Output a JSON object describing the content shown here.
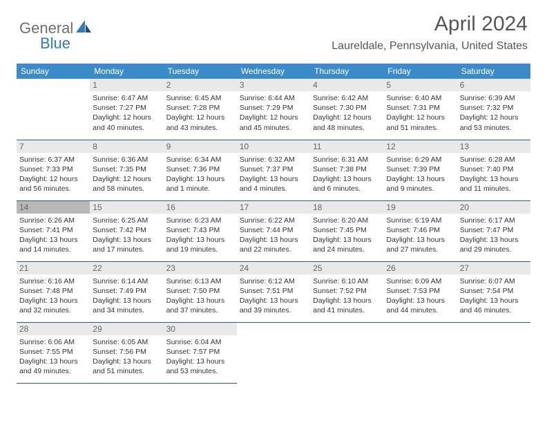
{
  "logo": {
    "part1": "General",
    "part2": "Blue"
  },
  "title": "April 2024",
  "location": "Laureldale, Pennsylvania, United States",
  "colors": {
    "header_bg": "#3b8bc8",
    "header_text": "#ffffff",
    "daynum_bg": "#e9e9e9",
    "daynum_bg_alt": "#b8b8b8",
    "border": "#2b5d84",
    "text": "#333333",
    "logo_gray": "#6f6f6f",
    "logo_blue": "#2f7bbf"
  },
  "day_headers": [
    "Sunday",
    "Monday",
    "Tuesday",
    "Wednesday",
    "Thursday",
    "Friday",
    "Saturday"
  ],
  "weeks": [
    [
      null,
      {
        "n": "1",
        "sr": "Sunrise: 6:47 AM",
        "ss": "Sunset: 7:27 PM",
        "d1": "Daylight: 12 hours",
        "d2": "and 40 minutes."
      },
      {
        "n": "2",
        "sr": "Sunrise: 6:45 AM",
        "ss": "Sunset: 7:28 PM",
        "d1": "Daylight: 12 hours",
        "d2": "and 43 minutes."
      },
      {
        "n": "3",
        "sr": "Sunrise: 6:44 AM",
        "ss": "Sunset: 7:29 PM",
        "d1": "Daylight: 12 hours",
        "d2": "and 45 minutes."
      },
      {
        "n": "4",
        "sr": "Sunrise: 6:42 AM",
        "ss": "Sunset: 7:30 PM",
        "d1": "Daylight: 12 hours",
        "d2": "and 48 minutes."
      },
      {
        "n": "5",
        "sr": "Sunrise: 6:40 AM",
        "ss": "Sunset: 7:31 PM",
        "d1": "Daylight: 12 hours",
        "d2": "and 51 minutes."
      },
      {
        "n": "6",
        "sr": "Sunrise: 6:39 AM",
        "ss": "Sunset: 7:32 PM",
        "d1": "Daylight: 12 hours",
        "d2": "and 53 minutes."
      }
    ],
    [
      {
        "n": "7",
        "sr": "Sunrise: 6:37 AM",
        "ss": "Sunset: 7:33 PM",
        "d1": "Daylight: 12 hours",
        "d2": "and 56 minutes."
      },
      {
        "n": "8",
        "sr": "Sunrise: 6:36 AM",
        "ss": "Sunset: 7:35 PM",
        "d1": "Daylight: 12 hours",
        "d2": "and 58 minutes."
      },
      {
        "n": "9",
        "sr": "Sunrise: 6:34 AM",
        "ss": "Sunset: 7:36 PM",
        "d1": "Daylight: 13 hours",
        "d2": "and 1 minute."
      },
      {
        "n": "10",
        "sr": "Sunrise: 6:32 AM",
        "ss": "Sunset: 7:37 PM",
        "d1": "Daylight: 13 hours",
        "d2": "and 4 minutes."
      },
      {
        "n": "11",
        "sr": "Sunrise: 6:31 AM",
        "ss": "Sunset: 7:38 PM",
        "d1": "Daylight: 13 hours",
        "d2": "and 6 minutes."
      },
      {
        "n": "12",
        "sr": "Sunrise: 6:29 AM",
        "ss": "Sunset: 7:39 PM",
        "d1": "Daylight: 13 hours",
        "d2": "and 9 minutes."
      },
      {
        "n": "13",
        "sr": "Sunrise: 6:28 AM",
        "ss": "Sunset: 7:40 PM",
        "d1": "Daylight: 13 hours",
        "d2": "and 11 minutes."
      }
    ],
    [
      {
        "n": "14",
        "dark": true,
        "sr": "Sunrise: 6:26 AM",
        "ss": "Sunset: 7:41 PM",
        "d1": "Daylight: 13 hours",
        "d2": "and 14 minutes."
      },
      {
        "n": "15",
        "sr": "Sunrise: 6:25 AM",
        "ss": "Sunset: 7:42 PM",
        "d1": "Daylight: 13 hours",
        "d2": "and 17 minutes."
      },
      {
        "n": "16",
        "sr": "Sunrise: 6:23 AM",
        "ss": "Sunset: 7:43 PM",
        "d1": "Daylight: 13 hours",
        "d2": "and 19 minutes."
      },
      {
        "n": "17",
        "sr": "Sunrise: 6:22 AM",
        "ss": "Sunset: 7:44 PM",
        "d1": "Daylight: 13 hours",
        "d2": "and 22 minutes."
      },
      {
        "n": "18",
        "sr": "Sunrise: 6:20 AM",
        "ss": "Sunset: 7:45 PM",
        "d1": "Daylight: 13 hours",
        "d2": "and 24 minutes."
      },
      {
        "n": "19",
        "sr": "Sunrise: 6:19 AM",
        "ss": "Sunset: 7:46 PM",
        "d1": "Daylight: 13 hours",
        "d2": "and 27 minutes."
      },
      {
        "n": "20",
        "sr": "Sunrise: 6:17 AM",
        "ss": "Sunset: 7:47 PM",
        "d1": "Daylight: 13 hours",
        "d2": "and 29 minutes."
      }
    ],
    [
      {
        "n": "21",
        "sr": "Sunrise: 6:16 AM",
        "ss": "Sunset: 7:48 PM",
        "d1": "Daylight: 13 hours",
        "d2": "and 32 minutes."
      },
      {
        "n": "22",
        "sr": "Sunrise: 6:14 AM",
        "ss": "Sunset: 7:49 PM",
        "d1": "Daylight: 13 hours",
        "d2": "and 34 minutes."
      },
      {
        "n": "23",
        "sr": "Sunrise: 6:13 AM",
        "ss": "Sunset: 7:50 PM",
        "d1": "Daylight: 13 hours",
        "d2": "and 37 minutes."
      },
      {
        "n": "24",
        "sr": "Sunrise: 6:12 AM",
        "ss": "Sunset: 7:51 PM",
        "d1": "Daylight: 13 hours",
        "d2": "and 39 minutes."
      },
      {
        "n": "25",
        "sr": "Sunrise: 6:10 AM",
        "ss": "Sunset: 7:52 PM",
        "d1": "Daylight: 13 hours",
        "d2": "and 41 minutes."
      },
      {
        "n": "26",
        "sr": "Sunrise: 6:09 AM",
        "ss": "Sunset: 7:53 PM",
        "d1": "Daylight: 13 hours",
        "d2": "and 44 minutes."
      },
      {
        "n": "27",
        "sr": "Sunrise: 6:07 AM",
        "ss": "Sunset: 7:54 PM",
        "d1": "Daylight: 13 hours",
        "d2": "and 46 minutes."
      }
    ],
    [
      {
        "n": "28",
        "sr": "Sunrise: 6:06 AM",
        "ss": "Sunset: 7:55 PM",
        "d1": "Daylight: 13 hours",
        "d2": "and 49 minutes."
      },
      {
        "n": "29",
        "sr": "Sunrise: 6:05 AM",
        "ss": "Sunset: 7:56 PM",
        "d1": "Daylight: 13 hours",
        "d2": "and 51 minutes."
      },
      {
        "n": "30",
        "sr": "Sunrise: 6:04 AM",
        "ss": "Sunset: 7:57 PM",
        "d1": "Daylight: 13 hours",
        "d2": "and 53 minutes."
      },
      null,
      null,
      null,
      null
    ]
  ]
}
